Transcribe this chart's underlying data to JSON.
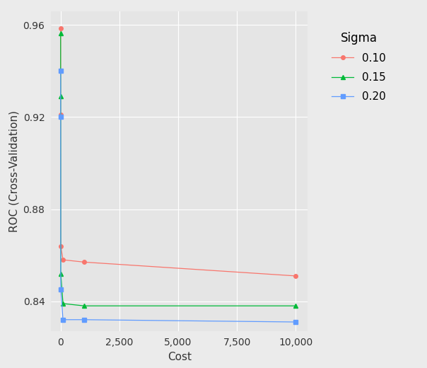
{
  "series": [
    {
      "label": "0.10",
      "color": "#F8766D",
      "marker": "o",
      "x": [
        0.25,
        1,
        5,
        100,
        1000,
        10000
      ],
      "y": [
        0.9585,
        0.921,
        0.864,
        0.858,
        0.857,
        0.851
      ]
    },
    {
      "label": "0.15",
      "color": "#00BA38",
      "marker": "^",
      "x": [
        0.25,
        1,
        5,
        100,
        1000,
        10000
      ],
      "y": [
        0.9565,
        0.929,
        0.852,
        0.839,
        0.838,
        0.838
      ]
    },
    {
      "label": "0.20",
      "color": "#619CFF",
      "marker": "s",
      "x": [
        0.25,
        1,
        5,
        100,
        1000,
        10000
      ],
      "y": [
        0.94,
        0.92,
        0.845,
        0.832,
        0.832,
        0.831
      ]
    }
  ],
  "xlabel": "Cost",
  "ylabel": "ROC (Cross-Validation)",
  "legend_title": "Sigma",
  "xlim": [
    -400,
    10500
  ],
  "ylim": [
    0.827,
    0.966
  ],
  "xticks": [
    0,
    2500,
    5000,
    7500,
    10000
  ],
  "yticks": [
    0.84,
    0.88,
    0.92,
    0.96
  ],
  "background_color": "#EBEBEB",
  "panel_background": "#E5E5E5",
  "grid_color": "#FFFFFF",
  "axis_fontsize": 11,
  "tick_fontsize": 10,
  "legend_fontsize": 11,
  "legend_title_fontsize": 12,
  "marker_size": 4,
  "line_width": 0.9
}
